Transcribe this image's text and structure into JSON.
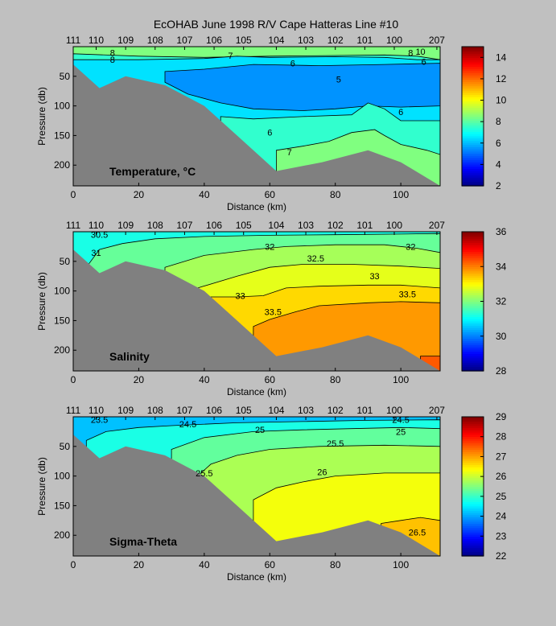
{
  "title": "EcOHAB   June 1998   R/V Cape Hatteras   Line #10",
  "station_labels": [
    "111",
    "110",
    "109",
    "108",
    "107",
    "106",
    "105",
    "104",
    "103",
    "102",
    "101",
    "100",
    "207"
  ],
  "station_km": [
    0,
    7,
    16,
    25,
    34,
    43,
    52,
    62,
    71,
    80,
    89,
    98,
    111
  ],
  "chart_data": [
    {
      "type": "heatmap",
      "panel_label": "Temperature, °C",
      "xlabel": "Distance (km)",
      "ylabel": "Pressure (db)",
      "xlim": [
        0,
        112
      ],
      "ylim": [
        235,
        0
      ],
      "xticks": [
        0,
        20,
        40,
        60,
        80,
        100
      ],
      "yticks": [
        50,
        100,
        150,
        200
      ],
      "colorbar": {
        "min": 2,
        "max": 15,
        "ticks": [
          2,
          4,
          6,
          8,
          10,
          12,
          14
        ]
      },
      "regions": [
        {
          "value": 8.5,
          "boundary": [
            [
              0,
              0
            ],
            [
              112,
              0
            ],
            [
              112,
              235
            ],
            [
              0,
              235
            ]
          ]
        },
        {
          "value": 7.5,
          "boundary": [
            [
              0,
              12
            ],
            [
              20,
              16
            ],
            [
              40,
              18
            ],
            [
              60,
              16
            ],
            [
              80,
              15
            ],
            [
              95,
              14
            ],
            [
              105,
              16
            ],
            [
              112,
              22
            ],
            [
              112,
              235
            ],
            [
              0,
              235
            ]
          ]
        },
        {
          "value": 6.5,
          "boundary": [
            [
              0,
              22
            ],
            [
              20,
              22
            ],
            [
              40,
              20
            ],
            [
              50,
              16
            ],
            [
              60,
              18
            ],
            [
              80,
              17
            ],
            [
              95,
              18
            ],
            [
              105,
              22
            ],
            [
              112,
              22
            ],
            [
              112,
              235
            ],
            [
              0,
              235
            ]
          ]
        },
        {
          "value": 5.5,
          "boundary": [
            [
              28,
              42
            ],
            [
              40,
              38
            ],
            [
              55,
              30
            ],
            [
              75,
              32
            ],
            [
              95,
              30
            ],
            [
              112,
              28
            ],
            [
              112,
              100
            ],
            [
              100,
              102
            ],
            [
              90,
              100
            ],
            [
              80,
              105
            ],
            [
              70,
              108
            ],
            [
              55,
              105
            ],
            [
              45,
              95
            ],
            [
              35,
              80
            ],
            [
              28,
              60
            ]
          ]
        },
        {
          "value": 7.5,
          "boundary": [
            [
              45,
              118
            ],
            [
              55,
              122
            ],
            [
              70,
              118
            ],
            [
              85,
              115
            ],
            [
              90,
              95
            ],
            [
              95,
              105
            ],
            [
              100,
              125
            ],
            [
              112,
              125
            ],
            [
              112,
              235
            ],
            [
              45,
              235
            ]
          ]
        },
        {
          "value": 8.5,
          "boundary": [
            [
              62,
              175
            ],
            [
              70,
              168
            ],
            [
              78,
              160
            ],
            [
              85,
              145
            ],
            [
              92,
              140
            ],
            [
              95,
              150
            ],
            [
              100,
              165
            ],
            [
              108,
              175
            ],
            [
              112,
              182
            ],
            [
              112,
              235
            ],
            [
              62,
              235
            ]
          ]
        }
      ],
      "contour_labels": [
        {
          "text": "8",
          "x": 12,
          "y": 10
        },
        {
          "text": "8",
          "x": 12,
          "y": 22
        },
        {
          "text": "7",
          "x": 48,
          "y": 15
        },
        {
          "text": "6",
          "x": 67,
          "y": 28
        },
        {
          "text": "5",
          "x": 81,
          "y": 55
        },
        {
          "text": "6",
          "x": 100,
          "y": 110
        },
        {
          "text": "6",
          "x": 60,
          "y": 145
        },
        {
          "text": "7",
          "x": 66,
          "y": 178
        },
        {
          "text": "8",
          "x": 103,
          "y": 10
        },
        {
          "text": "6",
          "x": 107,
          "y": 25
        },
        {
          "text": "10",
          "x": 106,
          "y": 8
        }
      ]
    },
    {
      "type": "heatmap",
      "panel_label": "Salinity",
      "xlabel": "Distance (km)",
      "ylabel": "Pressure (db)",
      "xlim": [
        0,
        112
      ],
      "ylim": [
        235,
        0
      ],
      "xticks": [
        0,
        20,
        40,
        60,
        80,
        100
      ],
      "yticks": [
        50,
        100,
        150,
        200
      ],
      "colorbar": {
        "min": 28,
        "max": 36,
        "ticks": [
          28,
          30,
          32,
          34,
          36
        ]
      },
      "regions": [
        {
          "value": 31.2,
          "boundary": [
            [
              0,
              0
            ],
            [
              112,
              0
            ],
            [
              112,
              235
            ],
            [
              0,
              235
            ]
          ]
        },
        {
          "value": 31.8,
          "boundary": [
            [
              4,
              60
            ],
            [
              8,
              30
            ],
            [
              15,
              20
            ],
            [
              25,
              12
            ],
            [
              40,
              8
            ],
            [
              60,
              6
            ],
            [
              80,
              5
            ],
            [
              100,
              4
            ],
            [
              112,
              3
            ],
            [
              112,
              235
            ],
            [
              4,
              235
            ]
          ]
        },
        {
          "value": 32.3,
          "boundary": [
            [
              28,
              60
            ],
            [
              40,
              40
            ],
            [
              55,
              30
            ],
            [
              65,
              25
            ],
            [
              80,
              22
            ],
            [
              95,
              22
            ],
            [
              105,
              28
            ],
            [
              112,
              35
            ],
            [
              112,
              235
            ],
            [
              28,
              235
            ]
          ]
        },
        {
          "value": 32.8,
          "boundary": [
            [
              38,
              95
            ],
            [
              50,
              75
            ],
            [
              60,
              60
            ],
            [
              70,
              55
            ],
            [
              85,
              55
            ],
            [
              100,
              58
            ],
            [
              112,
              62
            ],
            [
              112,
              235
            ],
            [
              38,
              235
            ]
          ]
        },
        {
          "value": 33.3,
          "boundary": [
            [
              42,
              110
            ],
            [
              50,
              110
            ],
            [
              58,
              108
            ],
            [
              65,
              95
            ],
            [
              75,
              92
            ],
            [
              90,
              90
            ],
            [
              100,
              90
            ],
            [
              112,
              95
            ],
            [
              112,
              235
            ],
            [
              42,
              235
            ]
          ]
        },
        {
          "value": 33.8,
          "boundary": [
            [
              55,
              160
            ],
            [
              60,
              148
            ],
            [
              68,
              135
            ],
            [
              75,
              125
            ],
            [
              90,
              120
            ],
            [
              100,
              118
            ],
            [
              112,
              120
            ],
            [
              112,
              235
            ],
            [
              55,
              235
            ]
          ]
        },
        {
          "value": 34.3,
          "boundary": [
            [
              106,
              210
            ],
            [
              112,
              210
            ],
            [
              112,
              235
            ],
            [
              106,
              235
            ]
          ]
        }
      ],
      "contour_labels": [
        {
          "text": "30.5",
          "x": 8,
          "y": 5
        },
        {
          "text": "31",
          "x": 7,
          "y": 35
        },
        {
          "text": "32",
          "x": 60,
          "y": 25
        },
        {
          "text": "32.5",
          "x": 74,
          "y": 45
        },
        {
          "text": "32",
          "x": 103,
          "y": 25
        },
        {
          "text": "33",
          "x": 92,
          "y": 75
        },
        {
          "text": "33",
          "x": 51,
          "y": 108
        },
        {
          "text": "33.5",
          "x": 61,
          "y": 135
        },
        {
          "text": "33.5",
          "x": 102,
          "y": 105
        }
      ]
    },
    {
      "type": "heatmap",
      "panel_label": "Sigma-Theta",
      "xlabel": "Distance (km)",
      "ylabel": "Pressure (db)",
      "xlim": [
        0,
        112
      ],
      "ylim": [
        235,
        0
      ],
      "xticks": [
        0,
        20,
        40,
        60,
        80,
        100
      ],
      "yticks": [
        50,
        100,
        150,
        200
      ],
      "colorbar": {
        "min": 22,
        "max": 29,
        "ticks": [
          22,
          23,
          24,
          25,
          26,
          27,
          28,
          29
        ]
      },
      "regions": [
        {
          "value": 24.2,
          "boundary": [
            [
              0,
              0
            ],
            [
              112,
              0
            ],
            [
              112,
              235
            ],
            [
              0,
              235
            ]
          ]
        },
        {
          "value": 24.8,
          "boundary": [
            [
              4,
              40
            ],
            [
              10,
              25
            ],
            [
              20,
              18
            ],
            [
              30,
              15
            ],
            [
              50,
              10
            ],
            [
              70,
              8
            ],
            [
              90,
              6
            ],
            [
              112,
              5
            ],
            [
              112,
              235
            ],
            [
              4,
              235
            ]
          ]
        },
        {
          "value": 25.3,
          "boundary": [
            [
              30,
              55
            ],
            [
              40,
              35
            ],
            [
              55,
              25
            ],
            [
              70,
              22
            ],
            [
              85,
              20
            ],
            [
              100,
              18
            ],
            [
              112,
              20
            ],
            [
              112,
              235
            ],
            [
              30,
              235
            ]
          ]
        },
        {
          "value": 25.8,
          "boundary": [
            [
              38,
              100
            ],
            [
              42,
              80
            ],
            [
              50,
              65
            ],
            [
              60,
              55
            ],
            [
              75,
              50
            ],
            [
              95,
              48
            ],
            [
              112,
              50
            ],
            [
              112,
              235
            ],
            [
              38,
              235
            ]
          ]
        },
        {
          "value": 26.3,
          "boundary": [
            [
              55,
              140
            ],
            [
              62,
              120
            ],
            [
              70,
              110
            ],
            [
              80,
              100
            ],
            [
              95,
              95
            ],
            [
              112,
              95
            ],
            [
              112,
              235
            ],
            [
              55,
              235
            ]
          ]
        },
        {
          "value": 26.8,
          "boundary": [
            [
              94,
              180
            ],
            [
              100,
              175
            ],
            [
              106,
              170
            ],
            [
              112,
              175
            ],
            [
              112,
              235
            ],
            [
              94,
              235
            ]
          ]
        }
      ],
      "contour_labels": [
        {
          "text": "23.5",
          "x": 8,
          "y": 5
        },
        {
          "text": "24.5",
          "x": 35,
          "y": 12
        },
        {
          "text": "25",
          "x": 57,
          "y": 22
        },
        {
          "text": "25.5",
          "x": 80,
          "y": 45
        },
        {
          "text": "26",
          "x": 76,
          "y": 93
        },
        {
          "text": "25.5",
          "x": 40,
          "y": 95
        },
        {
          "text": "24.5",
          "x": 100,
          "y": 5
        },
        {
          "text": "25",
          "x": 100,
          "y": 25
        },
        {
          "text": "26.5",
          "x": 105,
          "y": 195
        }
      ]
    }
  ],
  "bathymetry_km": [
    0,
    8,
    16,
    28,
    40,
    50,
    62,
    76,
    90,
    100,
    112
  ],
  "bathymetry_db": [
    30,
    70,
    50,
    65,
    100,
    150,
    210,
    195,
    175,
    195,
    235
  ],
  "land_color": "#808080",
  "background_color": "#c0c0c0"
}
